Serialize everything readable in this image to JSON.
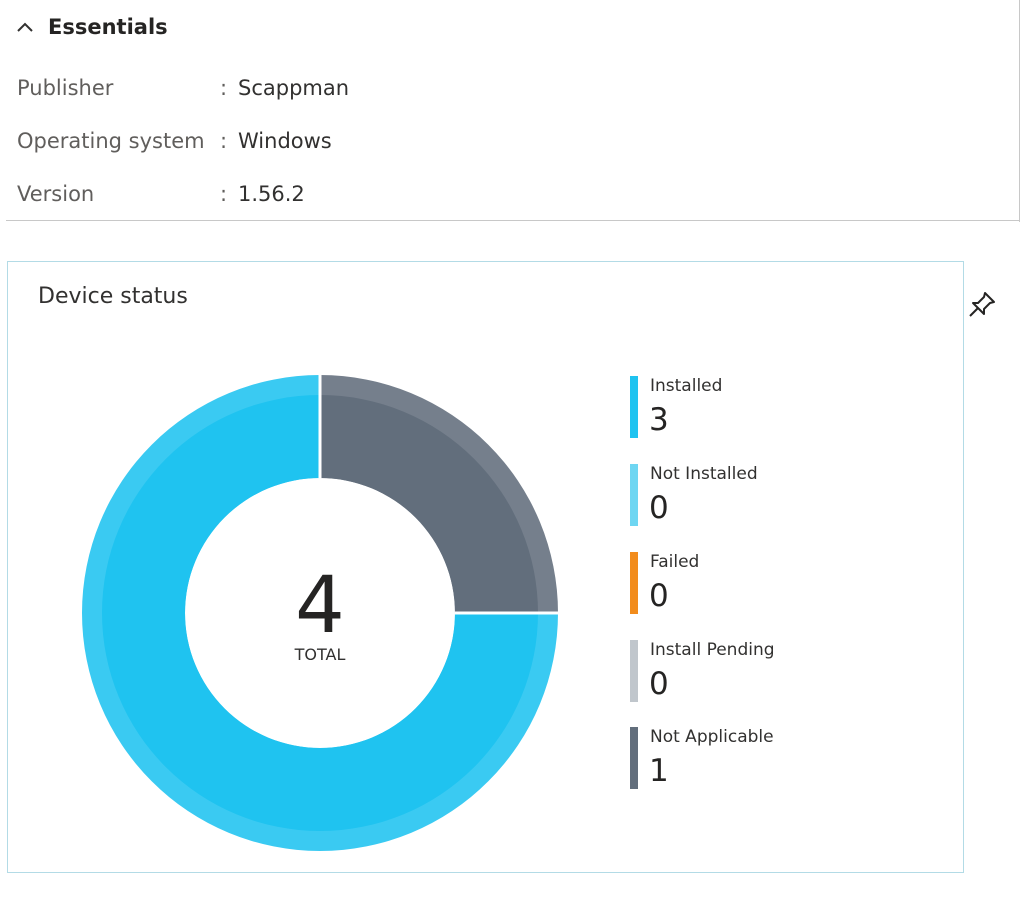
{
  "essentials": {
    "title": "Essentials",
    "collapse_icon": "chevron-up-icon",
    "properties": [
      {
        "label": "Publisher",
        "separator": ":",
        "value": "Scappman"
      },
      {
        "label": "Operating system",
        "separator": ":",
        "value": "Windows"
      },
      {
        "label": "Version",
        "separator": ":",
        "value": "1.56.2"
      }
    ]
  },
  "device_status": {
    "title": "Device status",
    "pin_icon": "pin-icon",
    "total": "4",
    "total_caption": "TOTAL",
    "colors": {
      "installed": "#1fc3f0",
      "not_installed": "#6ed6f2",
      "failed": "#f28c1c",
      "install_pending": "#c0c6cc",
      "not_applicable": "#626e7c"
    },
    "legend": [
      {
        "label": "Installed",
        "value": "3",
        "color": "#1fc3f0"
      },
      {
        "label": "Not Installed",
        "value": "0",
        "color": "#6ed6f2"
      },
      {
        "label": "Failed",
        "value": "0",
        "color": "#f28c1c"
      },
      {
        "label": "Install Pending",
        "value": "0",
        "color": "#c0c6cc"
      },
      {
        "label": "Not Applicable",
        "value": "1",
        "color": "#626e7c"
      }
    ]
  },
  "chart_data": {
    "type": "pie",
    "title": "Device status",
    "categories": [
      "Installed",
      "Not Installed",
      "Failed",
      "Install Pending",
      "Not Applicable"
    ],
    "values": [
      3,
      0,
      0,
      0,
      1
    ],
    "total": 4,
    "legend_position": "right"
  }
}
